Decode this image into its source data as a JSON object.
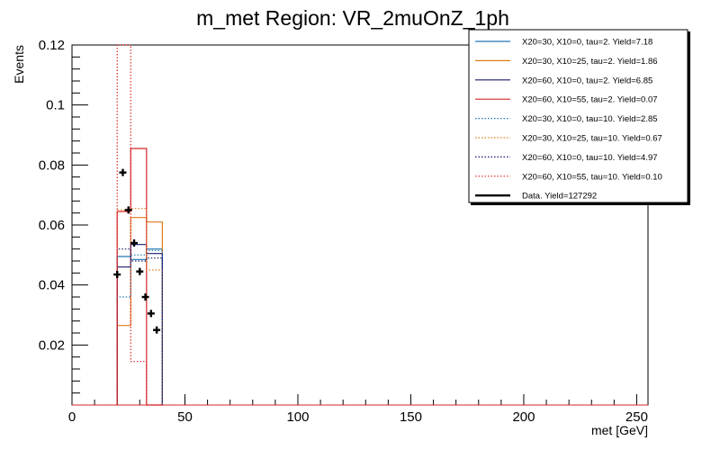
{
  "chart_data": {
    "type": "histogram",
    "title": "m_met Region: VR_2muOnZ_1ph",
    "xlabel": "met [GeV]",
    "ylabel": "Events",
    "xlim": [
      0,
      255
    ],
    "ylim": [
      0,
      0.12
    ],
    "x_ticks": [
      0,
      50,
      100,
      150,
      200,
      250
    ],
    "x_tick_labels": [
      "0",
      "50",
      "100",
      "150",
      "200",
      "250"
    ],
    "y_ticks": [
      0.02,
      0.04,
      0.06,
      0.08,
      0.1,
      0.12
    ],
    "y_tick_labels": [
      "0.02",
      "0.04",
      "0.06",
      "0.08",
      "0.1",
      "0.12"
    ],
    "legend_position": "top-right",
    "bin_edges": [
      20,
      26,
      33,
      40
    ],
    "series": [
      {
        "name": "X20=30, X10=0, tau=2. Yield=7.18",
        "color": "#1f77b4",
        "style": "solid",
        "values": [
          0.0495,
          0.0485,
          0.052
        ]
      },
      {
        "name": "X20=30, X10=25, tau=2. Yield=1.86",
        "color": "#e07b1a",
        "style": "solid",
        "values": [
          0.0265,
          0.0625,
          0.061
        ]
      },
      {
        "name": "X20=60, X10=0, tau=2. Yield=6.85",
        "color": "#1a1a6e",
        "style": "solid",
        "values": [
          0.046,
          0.0535,
          0.0505
        ]
      },
      {
        "name": "X20=60, X10=55, tau=2. Yield=0.07",
        "color": "#d62728",
        "style": "solid",
        "values": [
          0.0645,
          0.0855,
          0.0
        ]
      },
      {
        "name": "X20=30, X10=0, tau=10. Yield=2.85",
        "color": "#1f77b4",
        "style": "dotted",
        "values": [
          0.036,
          0.05,
          0.0515
        ]
      },
      {
        "name": "X20=30, X10=25, tau=10. Yield=0.67",
        "color": "#e07b1a",
        "style": "dotted",
        "values": [
          0.065,
          0.0655,
          0.045
        ]
      },
      {
        "name": "X20=60, X10=0, tau=10. Yield=4.97",
        "color": "#1a1a6e",
        "style": "dotted",
        "values": [
          0.052,
          0.048,
          0.049
        ]
      },
      {
        "name": "X20=60, X10=55, tau=10. Yield=0.10",
        "color": "#d62728",
        "style": "dotted",
        "values": [
          0.12,
          0.0145,
          0.0
        ]
      }
    ],
    "data": {
      "name": "Data. Yield=127292",
      "color": "#000000",
      "points": [
        {
          "x": 20,
          "y": 0.0435
        },
        {
          "x": 22.5,
          "y": 0.0775
        },
        {
          "x": 25,
          "y": 0.065
        },
        {
          "x": 27.5,
          "y": 0.054
        },
        {
          "x": 30,
          "y": 0.0445
        },
        {
          "x": 32.5,
          "y": 0.036
        },
        {
          "x": 35,
          "y": 0.0305
        },
        {
          "x": 37.5,
          "y": 0.025
        }
      ]
    }
  }
}
